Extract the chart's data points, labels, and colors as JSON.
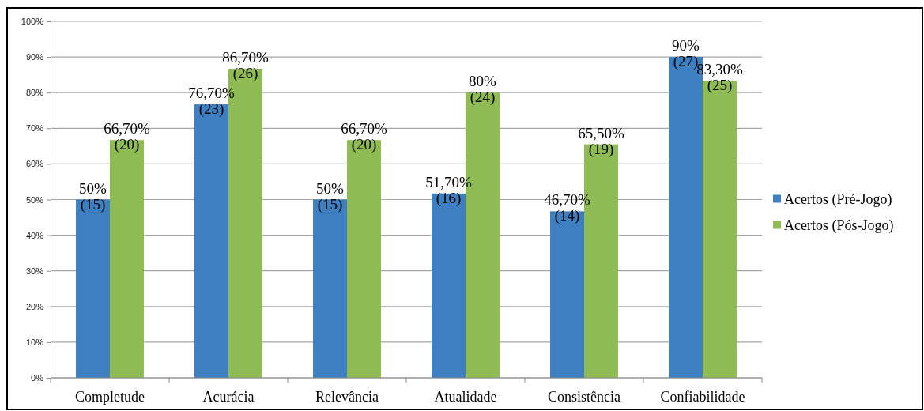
{
  "chart_data": {
    "type": "bar",
    "categories": [
      "Completude",
      "Acurácia",
      "Relevância",
      "Atualidade",
      "Consistência",
      "Confiabilidade"
    ],
    "series": [
      {
        "name": "Acertos (Pré-Jogo)",
        "color": "#3d7fc0",
        "values": [
          50,
          76.7,
          50,
          51.7,
          46.7,
          90
        ],
        "value_labels": [
          "50%\n(15)",
          "76,70%\n(23)",
          "50%\n(15)",
          "51,70%\n(16)",
          "46,70%\n(14)",
          "90%\n(27)"
        ]
      },
      {
        "name": "Acertos (Pós-Jogo)",
        "color": "#8fbb55",
        "values": [
          66.7,
          86.7,
          66.7,
          80,
          65.5,
          83.3
        ],
        "value_labels": [
          "66,70%\n(20)",
          "86,70%\n(26)",
          "66,70%\n(20)",
          "80%\n(24)",
          "65,50%\n(19)",
          "83,30%\n(25)"
        ]
      }
    ],
    "ylim": [
      0,
      100
    ],
    "yticks": [
      {
        "value": 0,
        "label": "0%"
      },
      {
        "value": 10,
        "label": "10%"
      },
      {
        "value": 20,
        "label": "20%"
      },
      {
        "value": 30,
        "label": "30%"
      },
      {
        "value": 40,
        "label": "40%"
      },
      {
        "value": 50,
        "label": "50%"
      },
      {
        "value": 60,
        "label": "60%"
      },
      {
        "value": 70,
        "label": "70%"
      },
      {
        "value": 80,
        "label": "80%"
      },
      {
        "value": 90,
        "label": "90%"
      },
      {
        "value": 100,
        "label": "100%"
      }
    ],
    "grid": "y",
    "legend": "right"
  }
}
